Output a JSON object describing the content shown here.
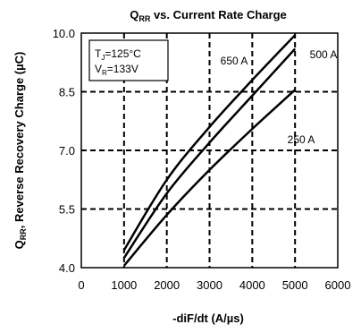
{
  "chart_data": {
    "type": "line",
    "title": {
      "q": "Q",
      "sub": "RR",
      "rest": " vs. Current Rate Charge"
    },
    "xlabel": "-diF/dt (A/µs)",
    "ylabel": {
      "q": "Q",
      "sub": "RR",
      "rest": ", Reverse Recovery Charge (µC)"
    },
    "xlim": [
      0,
      6000
    ],
    "ylim": [
      4.0,
      10.0
    ],
    "x_ticks": [
      "0",
      "1000",
      "2000",
      "3000",
      "4000",
      "5000",
      "6000"
    ],
    "y_ticks": [
      "4.0",
      "5.5",
      "7.0",
      "8.5",
      "10.0"
    ],
    "grid": "dashed",
    "annotation": {
      "line1": {
        "main": "T",
        "sub": "J",
        "rest": "=125°C"
      },
      "line2": {
        "main": "V",
        "sub": "R",
        "rest": "=133V"
      }
    },
    "series": [
      {
        "name": "650 A",
        "x": [
          1000,
          2000,
          3000,
          4000,
          5000
        ],
        "y": [
          4.45,
          6.25,
          7.6,
          8.8,
          9.95
        ]
      },
      {
        "name": "500 A",
        "x": [
          1000,
          2000,
          3000,
          4000,
          5000
        ],
        "y": [
          4.25,
          5.9,
          7.2,
          8.4,
          9.6
        ]
      },
      {
        "name": "250 A",
        "x": [
          1000,
          2000,
          3000,
          4000,
          5000
        ],
        "y": [
          4.05,
          5.35,
          6.5,
          7.55,
          8.55
        ]
      }
    ],
    "colors": {
      "line": "#000000",
      "grid": "#000000",
      "annotation_fill": "#ffffff"
    }
  }
}
